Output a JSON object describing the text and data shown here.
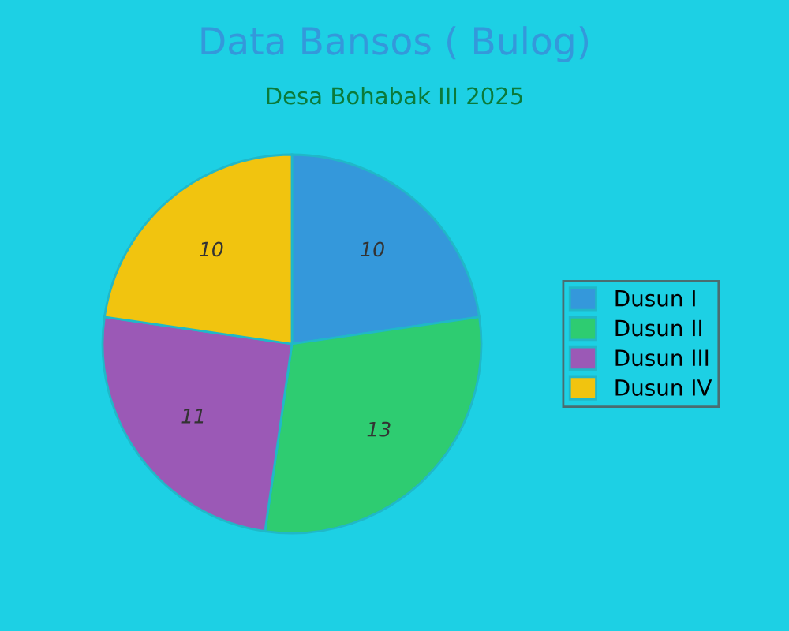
{
  "chart_data": {
    "type": "pie",
    "title": "Data Bansos ( Bulog)",
    "subtitle": "Desa Bohabak III 2025",
    "categories": [
      "Dusun I",
      "Dusun II",
      "Dusun III",
      "Dusun IV"
    ],
    "values": [
      10,
      13,
      11,
      10
    ],
    "colors": [
      "#3498db",
      "#2ecc71",
      "#9b59b6",
      "#f1c40f"
    ],
    "data_labels": true,
    "legend": "right"
  }
}
